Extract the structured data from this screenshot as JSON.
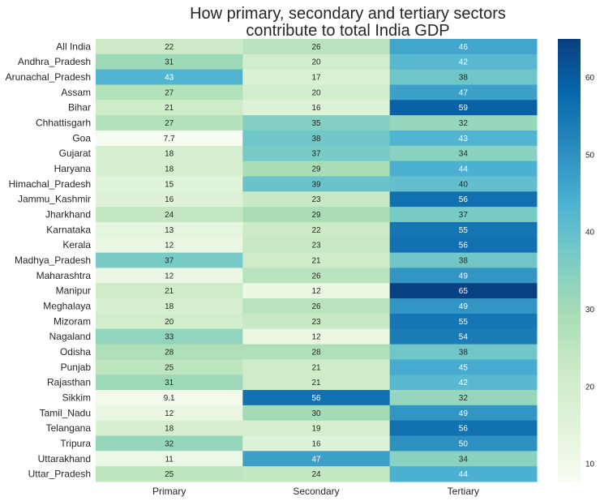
{
  "chart_data": {
    "type": "heatmap",
    "title": "How primary, secondary and tertiary sectors contribute to total India GDP",
    "title_lines": [
      "How primary, secondary and tertiary sectors",
      "contribute to total India GDP"
    ],
    "columns": [
      "Primary",
      "Secondary",
      "Tertiary"
    ],
    "rows": [
      "All India",
      "Andhra_Pradesh",
      "Arunachal_Pradesh",
      "Assam",
      "Bihar",
      "Chhattisgarh",
      "Goa",
      "Gujarat",
      "Haryana",
      "Himachal_Pradesh",
      "Jammu_Kashmir",
      "Jharkhand",
      "Karnataka",
      "Kerala",
      "Madhya_Pradesh",
      "Maharashtra",
      "Manipur",
      "Meghalaya",
      "Mizoram",
      "Nagaland",
      "Odisha",
      "Punjab",
      "Rajasthan",
      "Sikkim",
      "Tamil_Nadu",
      "Telangana",
      "Tripura",
      "Uttarakhand",
      "Uttar_Pradesh"
    ],
    "values": [
      [
        22,
        26,
        46
      ],
      [
        31,
        20,
        42
      ],
      [
        43,
        17,
        38
      ],
      [
        27,
        20,
        47
      ],
      [
        21,
        16,
        59
      ],
      [
        27,
        35,
        32
      ],
      [
        7.7,
        38,
        43
      ],
      [
        18,
        37,
        34
      ],
      [
        18,
        29,
        44
      ],
      [
        15,
        39,
        40
      ],
      [
        16,
        23,
        56
      ],
      [
        24,
        29,
        37
      ],
      [
        13,
        22,
        55
      ],
      [
        12,
        23,
        56
      ],
      [
        37,
        21,
        38
      ],
      [
        12,
        26,
        49
      ],
      [
        21,
        12,
        65
      ],
      [
        18,
        26,
        49
      ],
      [
        20,
        23,
        55
      ],
      [
        33,
        12,
        54
      ],
      [
        28,
        28,
        38
      ],
      [
        25,
        21,
        45
      ],
      [
        31,
        21,
        42
      ],
      [
        9.1,
        56,
        32
      ],
      [
        12,
        30,
        49
      ],
      [
        18,
        19,
        56
      ],
      [
        32,
        16,
        50
      ],
      [
        11,
        47,
        34
      ],
      [
        25,
        24,
        44
      ]
    ],
    "colormap": "GnBu",
    "colormap_stops": [
      "#f7fcf0",
      "#e0f3db",
      "#ccebc5",
      "#a8ddb5",
      "#7bccc4",
      "#4eb3d3",
      "#2b8cbe",
      "#0868ac",
      "#084081"
    ],
    "color_range": [
      7.7,
      65
    ],
    "colorbar_ticks": [
      10,
      20,
      30,
      40,
      50,
      60
    ],
    "annotated": true,
    "colorbar": "right"
  }
}
